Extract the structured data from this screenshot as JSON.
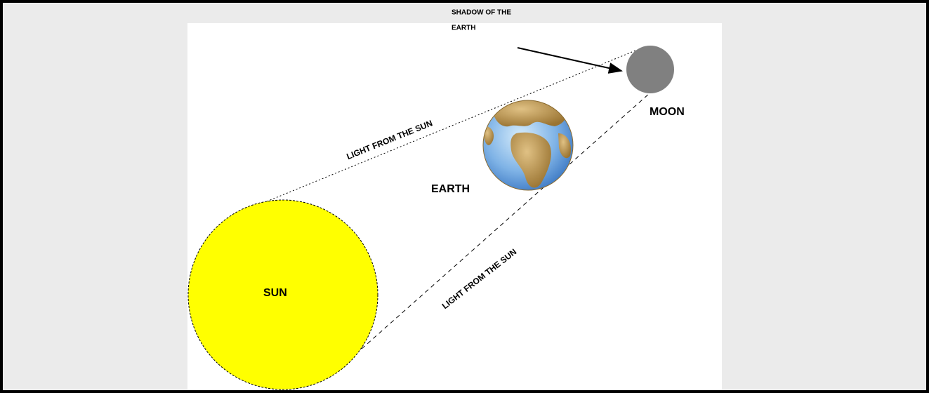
{
  "diagram": {
    "sun_label": "SUN",
    "earth_label": "EARTH",
    "moon_label": "MOON",
    "shadow_label": [
      "SHADOW OF THE",
      "EARTH"
    ],
    "light_labels": [
      "LIGHT FROM THE SUN",
      "LIGHT FROM THE SUN"
    ]
  }
}
